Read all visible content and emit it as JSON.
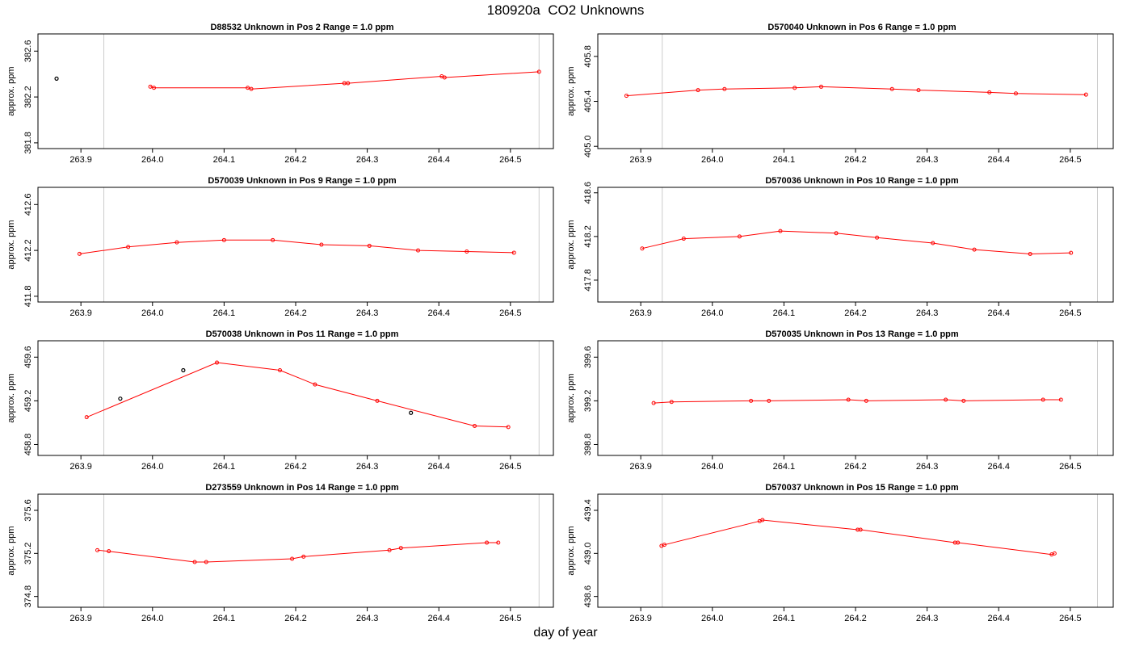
{
  "title": "180920a  CO2 Unknowns",
  "xlabel": "day of year",
  "colors": {
    "series": "#ff0000",
    "flagged": "#000000",
    "boundary": "#cccccc",
    "frame": "#000000"
  },
  "chart_data": [
    {
      "type": "line",
      "title_parts": [
        "D88532",
        "Unknown in Pos 2",
        "Range = 1.0 ppm"
      ],
      "ylabel": "approx. ppm",
      "xlim": [
        263.84,
        264.56
      ],
      "ylim": [
        381.75,
        382.75
      ],
      "xticks": [
        "263.9",
        "264.0",
        "264.1",
        "264.2",
        "264.3",
        "264.4",
        "264.5"
      ],
      "yticks": [
        "381.8",
        "382.2",
        "382.6"
      ],
      "ytick_values": [
        381.8,
        382.2,
        382.6
      ],
      "boundaries": [
        263.932,
        264.54
      ],
      "series": [
        {
          "x": [
            263.997,
            264.002,
            264.133,
            264.138,
            264.268,
            264.273,
            264.404,
            264.408,
            264.54
          ],
          "y": [
            382.29,
            382.28,
            382.28,
            382.27,
            382.32,
            382.32,
            382.38,
            382.37,
            382.42
          ]
        }
      ],
      "flagged": [
        {
          "x": 263.866,
          "y": 382.36
        }
      ]
    },
    {
      "type": "line",
      "title_parts": [
        "D570040",
        "Unknown in Pos 6",
        "Range = 1.0 ppm"
      ],
      "ylabel": "approx. ppm",
      "xlim": [
        263.84,
        264.56
      ],
      "ylim": [
        404.98,
        406.0
      ],
      "xticks": [
        "263.9",
        "264.0",
        "264.1",
        "264.2",
        "264.3",
        "264.4",
        "264.5"
      ],
      "yticks": [
        "405.0",
        "405.4",
        "405.8"
      ],
      "ytick_values": [
        405.0,
        405.4,
        405.8
      ],
      "boundaries": [
        263.93,
        264.538
      ],
      "series": [
        {
          "x": [
            263.88,
            263.98,
            264.017,
            264.115,
            264.152,
            264.251,
            264.288,
            264.387,
            264.424,
            264.522
          ],
          "y": [
            405.45,
            405.5,
            405.51,
            405.52,
            405.53,
            405.51,
            405.5,
            405.48,
            405.47,
            405.46
          ]
        }
      ],
      "flagged": []
    },
    {
      "type": "line",
      "title_parts": [
        "D570039",
        "Unknown in Pos 9",
        "Range = 1.0 ppm"
      ],
      "ylabel": "approx. ppm",
      "xlim": [
        263.84,
        264.56
      ],
      "ylim": [
        411.75,
        412.75
      ],
      "xticks": [
        "263.9",
        "264.0",
        "264.1",
        "264.2",
        "264.3",
        "264.4",
        "264.5"
      ],
      "yticks": [
        "411.8",
        "412.2",
        "412.6"
      ],
      "ytick_values": [
        411.8,
        412.2,
        412.6
      ],
      "boundaries": [
        263.932,
        264.54
      ],
      "series": [
        {
          "x": [
            263.898,
            263.966,
            264.034,
            264.1,
            264.168,
            264.236,
            264.303,
            264.371,
            264.439,
            264.505
          ],
          "y": [
            412.17,
            412.23,
            412.27,
            412.29,
            412.29,
            412.25,
            412.24,
            412.2,
            412.19,
            412.18
          ]
        }
      ],
      "flagged": []
    },
    {
      "type": "line",
      "title_parts": [
        "D570036",
        "Unknown in Pos 10",
        "Range = 1.0 ppm"
      ],
      "ylabel": "approx. ppm",
      "xlim": [
        263.84,
        264.56
      ],
      "ylim": [
        417.6,
        418.65
      ],
      "xticks": [
        "263.9",
        "264.0",
        "264.1",
        "264.2",
        "264.3",
        "264.4",
        "264.5"
      ],
      "yticks": [
        "417.8",
        "418.2",
        "418.6"
      ],
      "ytick_values": [
        417.8,
        418.2,
        418.6
      ],
      "boundaries": [
        263.93,
        264.538
      ],
      "series": [
        {
          "x": [
            263.902,
            263.96,
            264.038,
            264.095,
            264.173,
            264.23,
            264.308,
            264.366,
            264.444,
            264.501
          ],
          "y": [
            418.09,
            418.18,
            418.2,
            418.25,
            418.23,
            418.19,
            418.14,
            418.08,
            418.04,
            418.05
          ]
        }
      ],
      "flagged": []
    },
    {
      "type": "line",
      "title_parts": [
        "D570038",
        "Unknown in Pos 11",
        "Range = 1.0 ppm"
      ],
      "ylabel": "approx. ppm",
      "xlim": [
        263.84,
        264.56
      ],
      "ylim": [
        458.7,
        459.75
      ],
      "xticks": [
        "263.9",
        "264.0",
        "264.1",
        "264.2",
        "264.3",
        "264.4",
        "264.5"
      ],
      "yticks": [
        "458.8",
        "459.2",
        "459.6"
      ],
      "ytick_values": [
        458.8,
        459.2,
        459.6
      ],
      "boundaries": [
        263.932,
        264.54
      ],
      "series": [
        {
          "x": [
            263.908,
            264.09,
            264.178,
            264.227,
            264.314,
            264.45,
            264.497
          ],
          "y": [
            459.05,
            459.55,
            459.48,
            459.35,
            459.2,
            458.97,
            458.96
          ]
        }
      ],
      "flagged": [
        {
          "x": 263.955,
          "y": 459.22
        },
        {
          "x": 264.043,
          "y": 459.48
        },
        {
          "x": 264.361,
          "y": 459.09
        }
      ]
    },
    {
      "type": "line",
      "title_parts": [
        "D570035",
        "Unknown in Pos 13",
        "Range = 1.0 ppm"
      ],
      "ylabel": "approx. ppm",
      "xlim": [
        263.84,
        264.56
      ],
      "ylim": [
        398.7,
        399.75
      ],
      "xticks": [
        "263.9",
        "264.0",
        "264.1",
        "264.2",
        "264.3",
        "264.4",
        "264.5"
      ],
      "yticks": [
        "398.8",
        "399.2",
        "399.6"
      ],
      "ytick_values": [
        398.8,
        399.2,
        399.6
      ],
      "boundaries": [
        263.93,
        264.538
      ],
      "series": [
        {
          "x": [
            263.918,
            263.943,
            264.054,
            264.079,
            264.19,
            264.215,
            264.326,
            264.351,
            264.462,
            264.487
          ],
          "y": [
            399.18,
            399.19,
            399.2,
            399.2,
            399.21,
            399.2,
            399.21,
            399.2,
            399.21,
            399.21
          ]
        }
      ],
      "flagged": []
    },
    {
      "type": "line",
      "title_parts": [
        "D273559",
        "Unknown in Pos 14",
        "Range = 1.0 ppm"
      ],
      "ylabel": "approx. ppm",
      "xlim": [
        263.84,
        264.56
      ],
      "ylim": [
        374.7,
        375.75
      ],
      "xticks": [
        "263.9",
        "264.0",
        "264.1",
        "264.2",
        "264.3",
        "264.4",
        "264.5"
      ],
      "yticks": [
        "374.8",
        "375.2",
        "375.6"
      ],
      "ytick_values": [
        374.8,
        375.2,
        375.6
      ],
      "boundaries": [
        263.932,
        264.54
      ],
      "series": [
        {
          "x": [
            263.923,
            263.939,
            264.059,
            264.075,
            264.195,
            264.211,
            264.331,
            264.347,
            264.467,
            264.483
          ],
          "y": [
            375.23,
            375.22,
            375.12,
            375.12,
            375.15,
            375.17,
            375.23,
            375.25,
            375.3,
            375.3
          ]
        }
      ],
      "flagged": []
    },
    {
      "type": "line",
      "title_parts": [
        "D570037",
        "Unknown in Pos 15",
        "Range = 1.0 ppm"
      ],
      "ylabel": "approx. ppm",
      "xlim": [
        263.84,
        264.56
      ],
      "ylim": [
        438.5,
        439.55
      ],
      "xticks": [
        "263.9",
        "264.0",
        "264.1",
        "264.2",
        "264.3",
        "264.4",
        "264.5"
      ],
      "yticks": [
        "438.6",
        "439.0",
        "439.4"
      ],
      "ytick_values": [
        438.6,
        439.0,
        439.4
      ],
      "boundaries": [
        263.93,
        264.538
      ],
      "series": [
        {
          "x": [
            263.929,
            263.933,
            264.066,
            264.07,
            264.203,
            264.207,
            264.339,
            264.343,
            264.474,
            264.478
          ],
          "y": [
            439.07,
            439.08,
            439.3,
            439.31,
            439.22,
            439.22,
            439.1,
            439.1,
            438.99,
            439.0
          ]
        }
      ],
      "flagged": []
    }
  ]
}
